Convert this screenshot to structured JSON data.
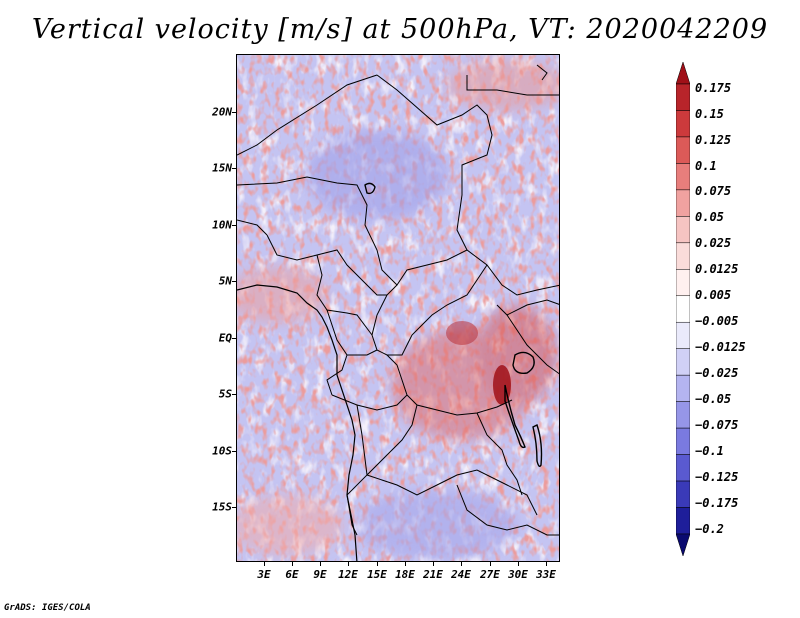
{
  "title": "Vertical velocity [m/s] at 500hPa, VT: 2020042209",
  "credit": "GrADS: IGES/COLA",
  "latitude_labels": [
    "20N",
    "15N",
    "10N",
    "5N",
    "EQ",
    "5S",
    "10S",
    "15S"
  ],
  "latitude_values": [
    20,
    15,
    10,
    5,
    0,
    -5,
    -10,
    -15
  ],
  "longitude_labels": [
    "3E",
    "6E",
    "9E",
    "12E",
    "15E",
    "18E",
    "21E",
    "24E",
    "27E",
    "30E",
    "33E"
  ],
  "longitude_values": [
    3,
    6,
    9,
    12,
    15,
    18,
    21,
    24,
    27,
    30,
    33
  ],
  "domain": {
    "lon_range": [
      0.5,
      35
    ],
    "lat_range": [
      -20,
      25
    ]
  },
  "colorbar": {
    "labels": [
      "0.175",
      "0.15",
      "0.125",
      "0.1",
      "0.075",
      "0.05",
      "0.025",
      "0.0125",
      "0.005",
      "−0.005",
      "−0.0125",
      "−0.025",
      "−0.05",
      "−0.075",
      "−0.1",
      "−0.125",
      "−0.175",
      "−0.2"
    ],
    "colors": [
      "#a01018",
      "#b8242a",
      "#cc3a3c",
      "#dc5a58",
      "#e87e7c",
      "#f0a2a0",
      "#f6c4c2",
      "#fadcda",
      "#fff0ef",
      "#ffffff",
      "#eaeafb",
      "#d0d0f6",
      "#b4b4f0",
      "#9696e8",
      "#7a7ae0",
      "#5a5ad0",
      "#3a3ab8",
      "#1e1e9a",
      "#0a0a70"
    ]
  }
}
